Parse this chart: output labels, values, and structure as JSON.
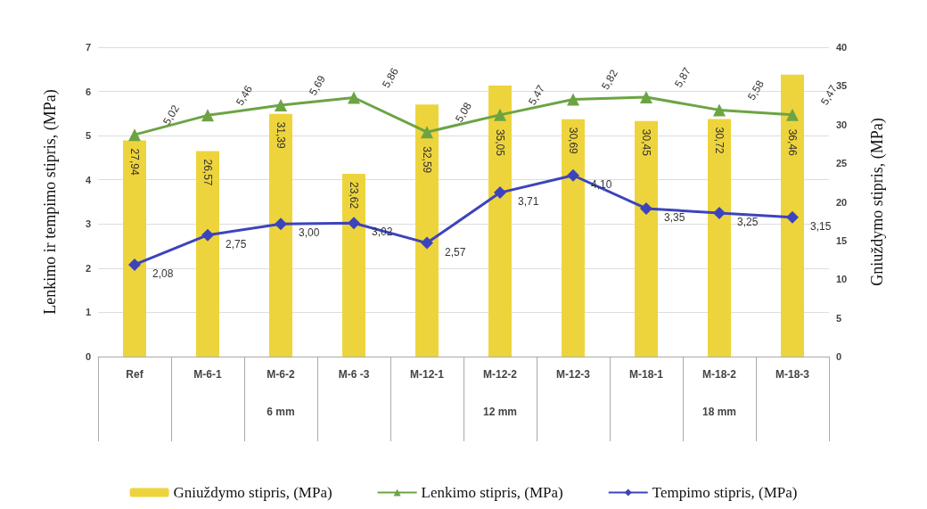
{
  "chart_data": {
    "type": "bar",
    "categories": [
      "Ref",
      "M-6-1",
      "M-6-2",
      "M-6 -3",
      "M-12-1",
      "M-12-2",
      "M-12-3",
      "M-18-1",
      "M-18-2",
      "M-18-3"
    ],
    "series": [
      {
        "name": "Gniuždymo stipris, (MPa)",
        "axis": "y2",
        "color": "#eed43c",
        "values": [
          27.94,
          26.57,
          31.39,
          23.62,
          32.59,
          35.05,
          30.69,
          30.45,
          30.72,
          36.46
        ],
        "value_labels": [
          "27,94",
          "26,57",
          "31,39",
          "23,62",
          "32,59",
          "35,05",
          "30,69",
          "30,45",
          "30,72",
          "36,46"
        ]
      },
      {
        "name": "Lenkimo stipris, (MPa)",
        "type": "line",
        "marker": "triangle",
        "color": "#6ca444",
        "values": [
          5.02,
          5.46,
          5.69,
          5.86,
          5.08,
          5.47,
          5.82,
          5.87,
          5.58,
          5.47
        ],
        "value_labels": [
          "5,02",
          "5,46",
          "5,69",
          "5,86",
          "5,08",
          "5,47",
          "5,82",
          "5,87",
          "5,58",
          "5,47"
        ]
      },
      {
        "name": "Tempimo stipris, (MPa)",
        "type": "line",
        "marker": "diamond",
        "color": "#3c44bc",
        "values": [
          2.08,
          2.75,
          3.0,
          3.02,
          2.57,
          3.71,
          4.1,
          3.35,
          3.25,
          3.15
        ],
        "value_labels": [
          "2,08",
          "2,75",
          "3,00",
          "3,02",
          "2,57",
          "3,71",
          "4,10",
          "3,35",
          "3,25",
          "3,15"
        ]
      }
    ],
    "ylabel": "Lenkimo ir tempimo stipris, (MPa)",
    "y2label": "Gniuždymo stipris, (MPa)",
    "ylim": [
      0,
      7
    ],
    "yticks": [
      0,
      1,
      2,
      3,
      4,
      5,
      6,
      7
    ],
    "y2lim": [
      0,
      40
    ],
    "y2ticks": [
      0,
      5,
      10,
      15,
      20,
      25,
      30,
      35,
      40
    ],
    "annotations": [
      "6 mm",
      "12 mm",
      "18 mm"
    ],
    "grid": "y",
    "legend": "bottom",
    "line_style": "solid"
  }
}
